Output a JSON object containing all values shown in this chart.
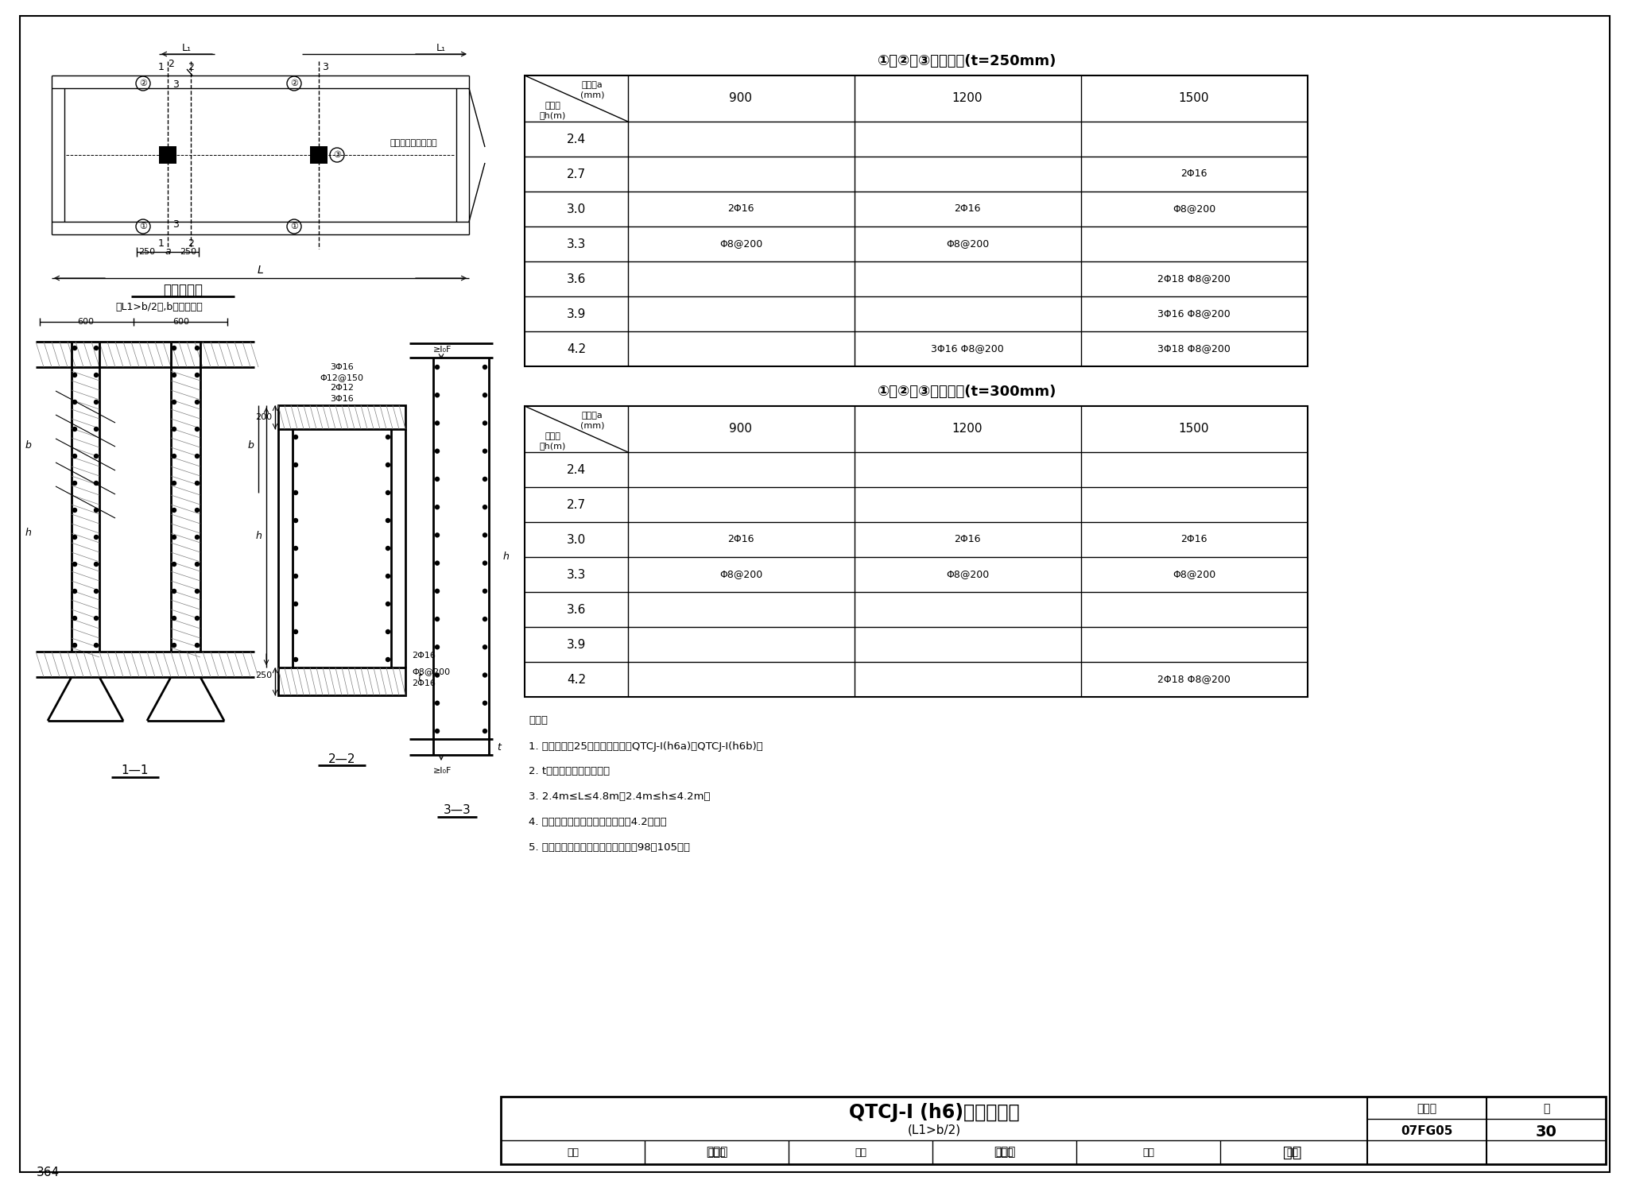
{
  "background_color": "#ffffff",
  "page_number": "364",
  "table1_title": "①（②）③筋配筋表(t=250mm)",
  "table2_title": "①（②）③筋配筋表(t=300mm)",
  "rows": [
    "2.4",
    "2.7",
    "3.0",
    "3.3",
    "3.6",
    "3.9",
    "4.2"
  ],
  "t250_data": {
    "900": {
      "3.0": "2Φ16",
      "3.3": "Φ8@200"
    },
    "1200": {
      "3.0": "2Φ16",
      "3.3": "Φ8@200",
      "4.2": "3Φ16 Φ8@200"
    },
    "1500": {
      "2.7": "2Φ16",
      "3.0": "Φ8@200",
      "3.6": "2Φ18 Φ8@200",
      "3.9": "3Φ16 Φ8@200",
      "4.2": "3Φ18 Φ8@200"
    }
  },
  "t300_data": {
    "900": {
      "3.0": "2Φ16",
      "3.3": "Φ8@200"
    },
    "1200": {
      "3.0": "2Φ16",
      "3.3": "Φ8@200"
    },
    "1500": {
      "3.0": "2Φ16",
      "3.3": "Φ8@200",
      "4.2": "2Φ18 Φ8@200"
    }
  },
  "notes": [
    "说明：",
    "1. 本图配合第25页使用，适用于QTCJ-I(h6a)、QTCJ-I(h6b)。",
    "2. t为防空地下室外墙厂。",
    "3. 2.4m≤L≤4.8m，2.4m≤h≤4.2m。",
    "4. 窗洞口四角斜向钉筋按编制说明4.2配置。",
    "5. 窗框预埋件、挡窗板以及零件图覉98～105页。"
  ],
  "plan_label": "平面配筋图",
  "plan_note": "当L1>b/2时,b为窗洞高度",
  "wall_label": "为主体结构外墙配筋",
  "section_1_1": "1—1",
  "section_2_2": "2—2",
  "section_3_3": "3—3",
  "title_main_bold": "QTCJ-Ⅰ (h6)窗框配筋图",
  "title_sub": "(L1>b/2)",
  "title_code": "07FG05",
  "title_page": "30",
  "tb_review": "审核",
  "tb_name1": "姜学诗",
  "tb_check": "校对",
  "tb_name2": "梁敏茈",
  "tb_design": "设计",
  "tb_name3": "王佳",
  "tb_atlas": "图集号",
  "tb_page_lbl": "页"
}
